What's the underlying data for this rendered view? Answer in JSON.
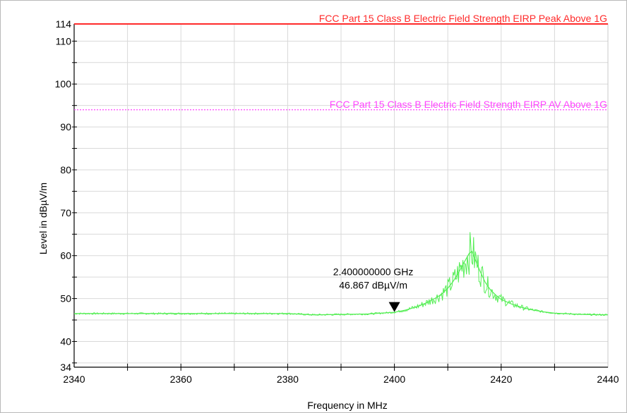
{
  "chart_data": {
    "type": "line",
    "xlabel": "Frequency in MHz",
    "ylabel": "Level in dBµV/m",
    "xlim": [
      2340,
      2440
    ],
    "ylim": [
      34,
      114
    ],
    "x_ticks": [
      "2340",
      "2360",
      "2380",
      "2400",
      "2420",
      "2440"
    ],
    "x_tick_values": [
      2340,
      2360,
      2380,
      2400,
      2420,
      2440
    ],
    "y_ticks": [
      "34",
      "40",
      "50",
      "60",
      "70",
      "80",
      "90",
      "100",
      "110",
      "114"
    ],
    "y_tick_values": [
      34,
      40,
      50,
      60,
      70,
      80,
      90,
      100,
      110,
      114
    ],
    "grid": true,
    "limit_lines": [
      {
        "name": "FCC Part 15 Class B Electric Field Strength EIRP Peak Above 1G",
        "value": 114,
        "color": "#ff2a2a",
        "style": "solid"
      },
      {
        "name": "FCC Part 15 Class B Electric Field Strength EIRP AV Above 1G",
        "value": 94,
        "color": "#ff44ff",
        "style": "dotted"
      }
    ],
    "marker": {
      "x": 2400,
      "y": 46.867,
      "freq_label": "2.400000000 GHz",
      "level_label": "46.867 dBµV/m"
    },
    "series": [
      {
        "color": "#55ee55",
        "x": [
          2340,
          2350,
          2360,
          2370,
          2380,
          2385,
          2390,
          2395,
          2400,
          2402,
          2404,
          2406,
          2408,
          2409,
          2410,
          2411,
          2412,
          2413,
          2414,
          2414.5,
          2415,
          2416,
          2417,
          2418,
          2419,
          2420,
          2422,
          2424,
          2426,
          2428,
          2430,
          2435,
          2440
        ],
        "y": [
          46.5,
          46.5,
          46.5,
          46.5,
          46.5,
          46.2,
          46.3,
          46.4,
          46.8,
          47.3,
          48.0,
          49.0,
          50.3,
          51.2,
          52.4,
          54.0,
          56.0,
          58.3,
          60.5,
          61.0,
          59.5,
          56.5,
          53.8,
          52.0,
          50.8,
          49.8,
          48.7,
          47.9,
          47.3,
          46.9,
          46.6,
          46.3,
          46.2
        ]
      }
    ]
  }
}
